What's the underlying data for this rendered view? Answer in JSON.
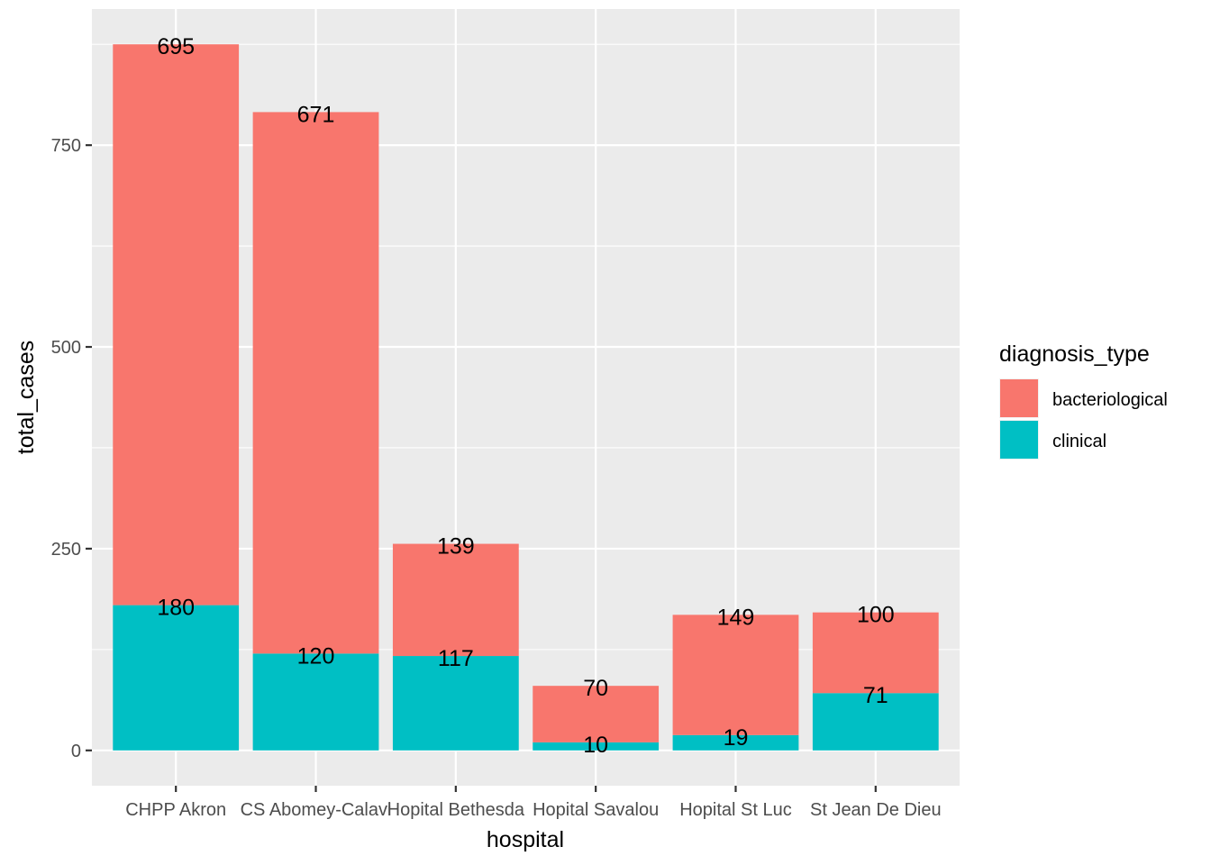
{
  "chart_data": {
    "type": "bar",
    "stacked": true,
    "xlabel": "hospital",
    "ylabel": "total_cases",
    "categories": [
      "CHPP Akron",
      "CS Abomey-Calavi",
      "Hopital Bethesda",
      "Hopital Savalou",
      "Hopital St Luc",
      "St Jean De Dieu"
    ],
    "series": [
      {
        "name": "clinical",
        "color": "#00BFC4",
        "values": [
          180,
          120,
          117,
          10,
          19,
          71
        ]
      },
      {
        "name": "bacteriological",
        "color": "#F8766D",
        "values": [
          695,
          671,
          139,
          70,
          149,
          100
        ]
      }
    ],
    "ylim": [
      -43.75,
      918.75
    ],
    "yticks": [
      0,
      250,
      500,
      750
    ],
    "grid": true,
    "legend": {
      "title": "diagnosis_type",
      "position": "right",
      "entries": [
        "bacteriological",
        "clinical"
      ]
    }
  }
}
